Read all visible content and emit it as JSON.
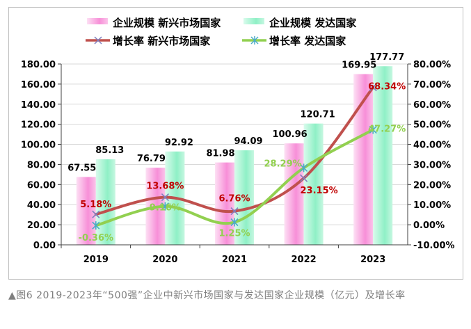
{
  "chart_data": {
    "type": "bar+line",
    "categories": [
      "2019",
      "2020",
      "2021",
      "2022",
      "2023"
    ],
    "bar_series": [
      {
        "name": "企业规模 新兴市场国家",
        "values": [
          67.55,
          76.79,
          81.98,
          100.96,
          169.95
        ],
        "color": "#f78fd8"
      },
      {
        "name": "企业规模 发达国家",
        "values": [
          85.13,
          92.92,
          94.09,
          120.71,
          177.77
        ],
        "color": "#8ff0c6"
      }
    ],
    "line_series": [
      {
        "name": "增长率 新兴市场国家",
        "values": [
          5.18,
          13.68,
          6.76,
          23.15,
          68.34
        ],
        "labels": [
          "5.18%",
          "13.68%",
          "6.76%",
          "23.15%",
          "68.34%"
        ],
        "color": "#c0504d",
        "label_color": "#c00000",
        "marker": "x"
      },
      {
        "name": "增长率 发达国家",
        "values": [
          -0.36,
          9.16,
          1.25,
          28.29,
          47.27
        ],
        "labels": [
          "-0.36%",
          "9.16%",
          "1.25%",
          "28.29%",
          "47.27%"
        ],
        "color": "#92d050",
        "label_color": "#92d050",
        "marker": "asterisk"
      }
    ],
    "bar_labels": [
      [
        "67.55",
        "76.79",
        "81.98",
        "100.96",
        "169.95"
      ],
      [
        "85.13",
        "92.92",
        "94.09",
        "120.71",
        "177.77"
      ]
    ],
    "y_left": {
      "range": [
        0,
        180
      ],
      "ticks": [
        "0.00",
        "20.00",
        "40.00",
        "60.00",
        "80.00",
        "100.00",
        "120.00",
        "140.00",
        "160.00",
        "180.00"
      ]
    },
    "y_right": {
      "range": [
        -10,
        80
      ],
      "ticks": [
        "-10.00%",
        "0.00%",
        "10.00%",
        "20.00%",
        "30.00%",
        "40.00%",
        "50.00%",
        "60.00%",
        "70.00%",
        "80.00%"
      ]
    },
    "grid": true,
    "legend_placement": "top"
  },
  "caption": "▲图6 2019-2023年“500强”企业中新兴市场国家与发达国家企业规模（亿元）及增长率"
}
